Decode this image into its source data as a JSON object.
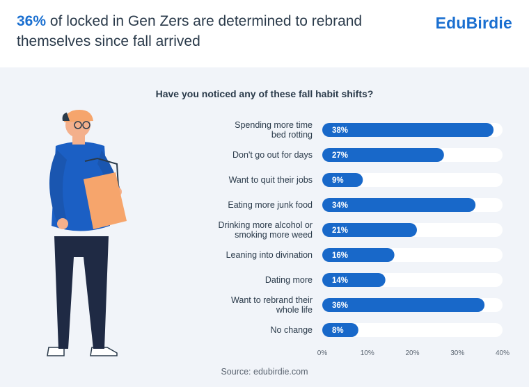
{
  "header": {
    "highlight": "36%",
    "headline_rest": " of locked in Gen Zers are determined to rebrand themselves since fall arrived",
    "logo": "EduBirdie"
  },
  "colors": {
    "accent": "#1a6fd0",
    "track": "#ffffff",
    "bar": "#1868c9"
  },
  "chart_data": {
    "type": "bar",
    "orientation": "horizontal",
    "title": "Have you noticed any of these fall habit shifts?",
    "categories": [
      [
        "Spending more time",
        "bed rotting"
      ],
      [
        "Don't go out for days"
      ],
      [
        "Want to quit their jobs"
      ],
      [
        "Eating more junk food"
      ],
      [
        "Drinking more alcohol or",
        "smoking more weed"
      ],
      [
        "Leaning into divination"
      ],
      [
        "Dating more"
      ],
      [
        "Want to rebrand their",
        "whole life"
      ],
      [
        "No change"
      ]
    ],
    "values": [
      38,
      27,
      9,
      34,
      21,
      16,
      14,
      36,
      8
    ],
    "value_suffix": "%",
    "xlim": [
      0,
      40
    ],
    "xticks": [
      "0%",
      "10%",
      "20%",
      "30%",
      "40%"
    ],
    "grid": false,
    "legend": "none"
  },
  "footer": {
    "source": "Source: edubirdie.com"
  }
}
